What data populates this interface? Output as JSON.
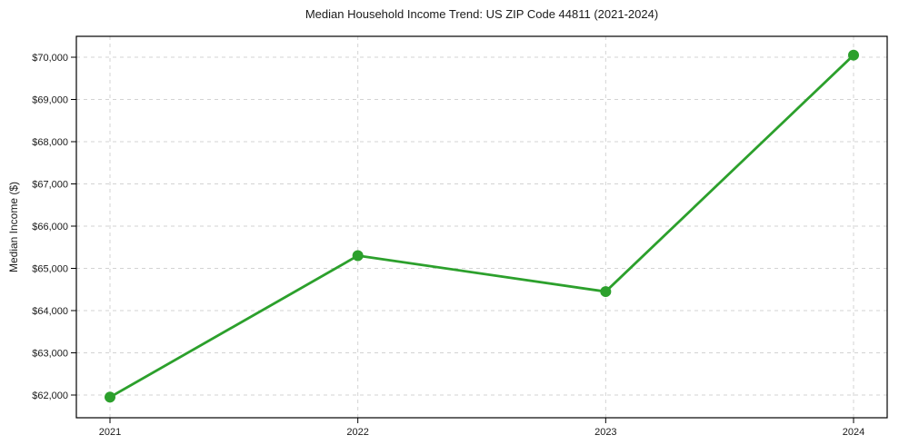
{
  "chart_data": {
    "type": "line",
    "title": "Median Household Income Trend: US ZIP Code 44811 (2021-2024)",
    "xlabel": "",
    "ylabel": "Median Income ($)",
    "categories": [
      "2021",
      "2022",
      "2023",
      "2024"
    ],
    "values": [
      61950,
      65300,
      64450,
      70050
    ],
    "ylim": [
      61462,
      70495
    ],
    "yticks": [
      62000,
      63000,
      64000,
      65000,
      66000,
      67000,
      68000,
      69000,
      70000
    ],
    "ytick_labels": [
      "$62,000",
      "$63,000",
      "$64,000",
      "$65,000",
      "$66,000",
      "$67,000",
      "$68,000",
      "$69,000",
      "$70,000"
    ],
    "grid": true,
    "grid_style": "dashed",
    "legend": "none",
    "line_color": "#2ca02c",
    "marker": "circle",
    "marker_color": "#2ca02c",
    "grid_color": "#d3d3d3",
    "axis_color": "#000000",
    "text_color": "#1a1a1a",
    "background": "#ffffff"
  }
}
